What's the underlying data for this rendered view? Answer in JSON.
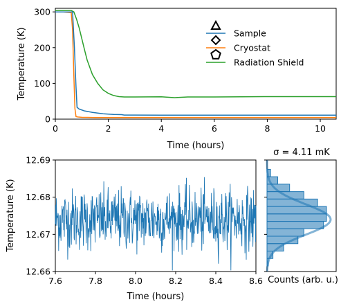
{
  "chart_data": [
    {
      "type": "line",
      "xlabel": "Time (hours)",
      "ylabel": "Temperature (K)",
      "xlim": [
        0,
        10.6
      ],
      "ylim": [
        0,
        310
      ],
      "xticks": [
        0,
        2,
        4,
        6,
        8,
        10
      ],
      "yticks": [
        0,
        100,
        200,
        300
      ],
      "legend_position": "upper-center",
      "series": [
        {
          "name": "Sample",
          "marker": "triangle",
          "color": "#1f77b4",
          "x": [
            0,
            0.3,
            0.55,
            0.65,
            0.72,
            0.78,
            0.82,
            0.9,
            1.1,
            1.4,
            1.8,
            2.2,
            2.5,
            2.6,
            3,
            4,
            5,
            6,
            7,
            8,
            9,
            10,
            10.6
          ],
          "y": [
            300,
            300,
            300,
            300,
            200,
            90,
            33,
            28,
            23,
            19,
            15,
            13,
            12.5,
            11.5,
            11.5,
            11.3,
            11.3,
            11.2,
            11.2,
            11.2,
            11.1,
            11.1,
            11.1
          ]
        },
        {
          "name": "Cryostat",
          "marker": "diamond",
          "color": "#ff7f0e",
          "x": [
            0,
            0.3,
            0.6,
            0.65,
            0.7,
            0.74,
            0.78,
            0.85,
            1.0,
            1.5,
            2,
            3,
            4,
            5,
            6,
            7,
            8,
            9,
            10,
            10.6
          ],
          "y": [
            300,
            300,
            298,
            250,
            120,
            30,
            7,
            6,
            5,
            4.5,
            4.3,
            4.2,
            4.2,
            4.2,
            4.2,
            4.2,
            4.2,
            4.2,
            4.2,
            4.2
          ]
        },
        {
          "name": "Radiation Shield",
          "marker": "pentagon",
          "color": "#2ca02c",
          "x": [
            0,
            0.6,
            0.7,
            0.8,
            0.9,
            1.0,
            1.1,
            1.2,
            1.4,
            1.6,
            1.8,
            2.0,
            2.2,
            2.4,
            2.6,
            3,
            4,
            4.5,
            5,
            6,
            7,
            8,
            9,
            10,
            10.6
          ],
          "y": [
            304,
            304,
            300,
            280,
            255,
            225,
            195,
            165,
            125,
            100,
            82,
            72,
            66,
            63,
            62,
            62,
            62.5,
            60,
            62,
            62,
            62.5,
            63,
            63,
            63,
            63
          ]
        }
      ]
    },
    {
      "type": "line",
      "xlabel": "Time (hours)",
      "ylabel": "Temperature (K)",
      "xlim": [
        7.6,
        8.6
      ],
      "ylim": [
        12.66,
        12.69
      ],
      "xticks": [
        "7.6",
        "7.8",
        "8.0",
        "8.2",
        "8.4",
        "8.6"
      ],
      "yticks": [
        "12.66",
        "12.67",
        "12.68",
        "12.69"
      ],
      "series": [
        {
          "color": "#1f77b4",
          "mean": 12.674,
          "std": 0.00411,
          "samples_per_hour": 600
        }
      ]
    },
    {
      "type": "bar",
      "orientation": "horizontal",
      "title": "σ = 4.11 mK",
      "xlabel": "Counts (arb. u.)",
      "ylim": [
        12.66,
        12.69
      ],
      "bin_edges": [
        12.6615,
        12.6635,
        12.6655,
        12.6675,
        12.6695,
        12.6715,
        12.6735,
        12.6755,
        12.6775,
        12.6795,
        12.6815,
        12.6835,
        12.6855,
        12.6875
      ],
      "counts": [
        0.02,
        0.1,
        0.28,
        0.52,
        0.62,
        0.95,
        1.0,
        1.0,
        0.85,
        0.62,
        0.38,
        0.18,
        0.06
      ],
      "fit_mean": 12.674,
      "fit_sigma": 0.00411,
      "color": "#1f77b4"
    }
  ]
}
